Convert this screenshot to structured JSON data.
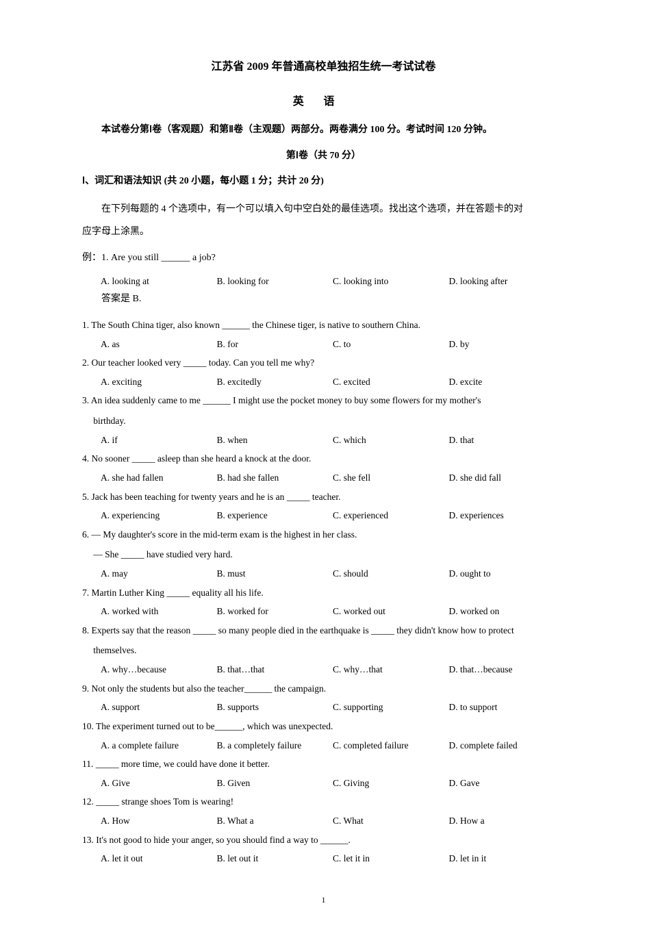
{
  "header": {
    "main_title": "江苏省 2009 年普通高校单独招生统一考试试卷",
    "subject": "英语",
    "instruction": "本试卷分第Ⅰ卷（客观题）和第Ⅱ卷（主观题）两部分。两卷满分 100 分。考试时间 120 分钟。",
    "part_header": "第Ⅰ卷（共 70 分）",
    "section_header": "Ⅰ、词汇和语法知识  (共 20 小题，每小题 1 分；共计 20 分)",
    "section_desc1": "在下列每题的 4 个选项中，有一个可以填入句中空白处的最佳选项。找出这个选项，并在答题卡的对",
    "section_desc2": "应字母上涂黑。"
  },
  "example": {
    "line": "例：1. Are you still ______ a job?",
    "options": {
      "a": "A. looking at",
      "b": "B. looking for",
      "c": "C. looking into",
      "d": "D. looking after"
    },
    "answer": "答案是 B."
  },
  "questions": [
    {
      "text": "1. The South China tiger, also known ______ the Chinese tiger, is native to southern China.",
      "options": {
        "a": "A. as",
        "b": "B. for",
        "c": "C. to",
        "d": "D. by"
      }
    },
    {
      "text": "2. Our teacher looked very _____ today.   Can you tell me why?",
      "options": {
        "a": "A. exciting",
        "b": "B. excitedly",
        "c": "C. excited",
        "d": "D. excite"
      }
    },
    {
      "text": "3. An idea suddenly came to me ______ I might use the pocket money to buy some flowers for my mother's",
      "text2": "birthday.",
      "options": {
        "a": "A. if",
        "b": "B. when",
        "c": "C. which",
        "d": "D. that"
      },
      "indented": true
    },
    {
      "text": "4. No sooner _____ asleep than she heard a knock at the door.",
      "options": {
        "a": "A. she had fallen",
        "b": "B. had she fallen",
        "c": "C. she fell",
        "d": "D. she did fall"
      }
    },
    {
      "text": "5. Jack has been teaching for twenty years and he is an _____ teacher.",
      "options": {
        "a": "A. experiencing",
        "b": "B. experience",
        "c": "C. experienced",
        "d": "D. experiences"
      }
    },
    {
      "text": "6. — My daughter's score in the mid-term exam is the highest in her class.",
      "text2": "— She _____ have studied very hard.",
      "options": {
        "a": "A. may",
        "b": "B. must",
        "c": "C. should",
        "d": "D. ought to"
      },
      "indented": true
    },
    {
      "text": "7. Martin Luther King _____ equality all his life.",
      "options": {
        "a": "A. worked with",
        "b": "B. worked for",
        "c": "C. worked out",
        "d": "D. worked on"
      }
    },
    {
      "text": "8. Experts say that the reason _____ so many people died in the earthquake is _____ they didn't know how to protect",
      "text2": "themselves.",
      "options": {
        "a": "A. why…because",
        "b": "B. that…that",
        "c": "C. why…that",
        "d": "D. that…because"
      },
      "indented": true
    },
    {
      "text": "9. Not only the students but also the teacher______ the campaign.",
      "options": {
        "a": "A. support",
        "b": "B. supports",
        "c": "C. supporting",
        "d": "D. to support"
      }
    },
    {
      "text": "10. The experiment turned out to be______, which was unexpected.",
      "options": {
        "a": "A. a complete failure",
        "b": "B. a completely failure",
        "c": "C. completed failure",
        "d": "D. complete failed"
      }
    },
    {
      "text": "11. _____ more time, we could have done it better.",
      "options": {
        "a": "A. Give",
        "b": "B. Given",
        "c": "C. Giving",
        "d": "D. Gave"
      }
    },
    {
      "text": "12. _____ strange shoes Tom is wearing!",
      "options": {
        "a": "A. How",
        "b": "B. What a",
        "c": "C. What",
        "d": "D. How a"
      }
    },
    {
      "text": "13. It's not good to hide your anger, so you should find a way to ______.",
      "options": {
        "a": "A. let it out",
        "b": "B. let out it",
        "c": "C. let it in",
        "d": "D. let in it"
      }
    }
  ],
  "page_number": "1"
}
